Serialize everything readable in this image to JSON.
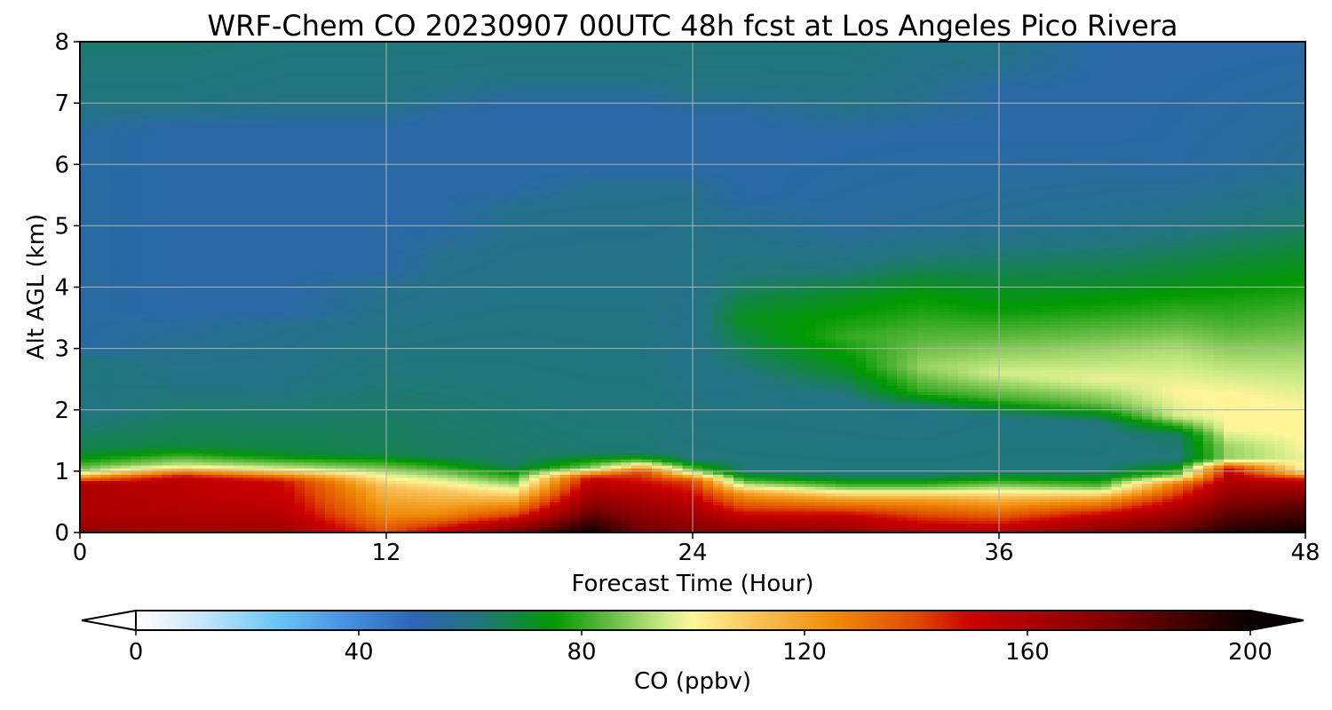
{
  "chart_data": {
    "type": "heatmap",
    "title": "WRF-Chem CO  20230907 00UTC 48h fcst at Los Angeles Pico Rivera",
    "xlabel": "Forecast Time (Hour)",
    "ylabel": "Alt AGL (km)",
    "xlim": [
      0,
      48
    ],
    "ylim": [
      0,
      8
    ],
    "x_ticks": [
      "0",
      "12",
      "24",
      "36",
      "48"
    ],
    "y_ticks": [
      "0",
      "1",
      "2",
      "3",
      "4",
      "5",
      "6",
      "7",
      "8"
    ],
    "grid": true,
    "colorbar": {
      "label": "CO  (ppbv)",
      "range": [
        0,
        200
      ],
      "ticks": [
        "0",
        "40",
        "80",
        "120",
        "160",
        "200"
      ],
      "extend": "both",
      "orientation": "horizontal",
      "stops": [
        {
          "v": 0,
          "c": "#ffffff"
        },
        {
          "v": 12,
          "c": "#c6e6fa"
        },
        {
          "v": 25,
          "c": "#6cc6f6"
        },
        {
          "v": 38,
          "c": "#4690e0"
        },
        {
          "v": 50,
          "c": "#2d64b4"
        },
        {
          "v": 62,
          "c": "#20767a"
        },
        {
          "v": 75,
          "c": "#009900"
        },
        {
          "v": 85,
          "c": "#66bb44"
        },
        {
          "v": 95,
          "c": "#cceb88"
        },
        {
          "v": 100,
          "c": "#fff699"
        },
        {
          "v": 110,
          "c": "#f9c860"
        },
        {
          "v": 125,
          "c": "#f08c08"
        },
        {
          "v": 140,
          "c": "#e14a00"
        },
        {
          "v": 150,
          "c": "#cc0000"
        },
        {
          "v": 175,
          "c": "#800000"
        },
        {
          "v": 200,
          "c": "#0a0000"
        }
      ]
    },
    "columns": [
      {
        "t": 0,
        "levels": [
          [
            0,
            170
          ],
          [
            0.3,
            160
          ],
          [
            0.8,
            160
          ],
          [
            1.0,
            90
          ],
          [
            1.3,
            68
          ],
          [
            2.0,
            60
          ],
          [
            2.8,
            62
          ],
          [
            3.0,
            54
          ],
          [
            6.5,
            54
          ],
          [
            7.0,
            61
          ],
          [
            8.0,
            63
          ]
        ]
      },
      {
        "t": 4,
        "levels": [
          [
            0,
            165
          ],
          [
            0.4,
            158
          ],
          [
            0.9,
            155
          ],
          [
            1.1,
            95
          ],
          [
            1.4,
            68
          ],
          [
            2.5,
            60
          ],
          [
            3.2,
            57
          ],
          [
            3.6,
            53
          ],
          [
            6.6,
            53
          ],
          [
            7.0,
            61
          ],
          [
            8.0,
            63
          ]
        ]
      },
      {
        "t": 8,
        "levels": [
          [
            0,
            165
          ],
          [
            0.4,
            155
          ],
          [
            0.85,
            148
          ],
          [
            1.05,
            95
          ],
          [
            1.3,
            68
          ],
          [
            2.5,
            60
          ],
          [
            3.4,
            58
          ],
          [
            3.6,
            53
          ],
          [
            6.6,
            53
          ],
          [
            7.0,
            60
          ],
          [
            8.0,
            62
          ]
        ]
      },
      {
        "t": 12,
        "levels": [
          [
            0,
            140
          ],
          [
            0.3,
            125
          ],
          [
            0.75,
            112
          ],
          [
            1.0,
            92
          ],
          [
            1.3,
            66
          ],
          [
            4.0,
            58
          ],
          [
            4.3,
            53
          ],
          [
            6.6,
            53
          ],
          [
            7.0,
            60
          ],
          [
            8.0,
            62
          ]
        ]
      },
      {
        "t": 14,
        "levels": [
          [
            0,
            155
          ],
          [
            0.3,
            125
          ],
          [
            0.7,
            110
          ],
          [
            0.95,
            90
          ],
          [
            1.25,
            65
          ],
          [
            4.5,
            58
          ],
          [
            5.0,
            53
          ],
          [
            6.8,
            53
          ],
          [
            7.2,
            60
          ],
          [
            8.0,
            62
          ]
        ]
      },
      {
        "t": 17,
        "levels": [
          [
            0,
            180
          ],
          [
            0.3,
            140
          ],
          [
            0.6,
            110
          ],
          [
            0.8,
            90
          ],
          [
            1.1,
            64
          ],
          [
            5.3,
            58
          ],
          [
            5.6,
            53
          ],
          [
            7.0,
            53
          ],
          [
            7.4,
            60
          ],
          [
            8.0,
            62
          ]
        ]
      },
      {
        "t": 20,
        "levels": [
          [
            0,
            200
          ],
          [
            0.5,
            170
          ],
          [
            0.9,
            150
          ],
          [
            1.05,
            90
          ],
          [
            1.3,
            63
          ],
          [
            5.6,
            58
          ],
          [
            5.9,
            53
          ],
          [
            7.0,
            53
          ],
          [
            7.4,
            60
          ],
          [
            8.0,
            62
          ]
        ]
      },
      {
        "t": 22,
        "levels": [
          [
            0,
            180
          ],
          [
            0.6,
            160
          ],
          [
            1.0,
            140
          ],
          [
            1.15,
            90
          ],
          [
            1.3,
            63
          ],
          [
            5.6,
            58
          ],
          [
            5.9,
            53
          ],
          [
            7.0,
            53
          ],
          [
            7.4,
            60
          ],
          [
            8.0,
            62
          ]
        ]
      },
      {
        "t": 24,
        "levels": [
          [
            0,
            175
          ],
          [
            0.4,
            160
          ],
          [
            0.85,
            140
          ],
          [
            1.0,
            90
          ],
          [
            1.2,
            62
          ],
          [
            3.5,
            58
          ],
          [
            4.5,
            60
          ],
          [
            5.6,
            58
          ],
          [
            5.9,
            53
          ],
          [
            6.8,
            53
          ],
          [
            7.2,
            60
          ],
          [
            8.0,
            62
          ]
        ]
      },
      {
        "t": 26,
        "levels": [
          [
            0,
            175
          ],
          [
            0.3,
            150
          ],
          [
            0.65,
            120
          ],
          [
            0.8,
            90
          ],
          [
            1.0,
            62
          ],
          [
            2.5,
            60
          ],
          [
            3.5,
            72
          ],
          [
            4.2,
            62
          ],
          [
            5.0,
            58
          ],
          [
            5.5,
            53
          ],
          [
            6.8,
            53
          ],
          [
            7.2,
            60
          ],
          [
            8.0,
            62
          ]
        ]
      },
      {
        "t": 30,
        "levels": [
          [
            0,
            170
          ],
          [
            0.3,
            150
          ],
          [
            0.55,
            120
          ],
          [
            0.75,
            85
          ],
          [
            0.95,
            62
          ],
          [
            2.2,
            60
          ],
          [
            2.7,
            72
          ],
          [
            3.2,
            80
          ],
          [
            3.8,
            72
          ],
          [
            4.3,
            62
          ],
          [
            5.0,
            55
          ],
          [
            6.5,
            53
          ],
          [
            7.0,
            60
          ],
          [
            8.0,
            62
          ]
        ]
      },
      {
        "t": 33,
        "levels": [
          [
            0,
            160
          ],
          [
            0.3,
            140
          ],
          [
            0.55,
            120
          ],
          [
            0.75,
            85
          ],
          [
            0.95,
            62
          ],
          [
            2.0,
            60
          ],
          [
            2.3,
            80
          ],
          [
            2.7,
            90
          ],
          [
            3.3,
            82
          ],
          [
            3.9,
            74
          ],
          [
            4.4,
            64
          ],
          [
            5.0,
            56
          ],
          [
            6.6,
            53
          ],
          [
            7.0,
            58
          ],
          [
            8.0,
            60
          ]
        ]
      },
      {
        "t": 36,
        "levels": [
          [
            0,
            160
          ],
          [
            0.3,
            135
          ],
          [
            0.55,
            115
          ],
          [
            0.8,
            85
          ],
          [
            1.0,
            62
          ],
          [
            1.9,
            61
          ],
          [
            2.2,
            82
          ],
          [
            2.6,
            96
          ],
          [
            3.0,
            88
          ],
          [
            3.6,
            76
          ],
          [
            4.3,
            66
          ],
          [
            5.0,
            57
          ],
          [
            6.5,
            53
          ],
          [
            7.2,
            53
          ],
          [
            7.6,
            58
          ],
          [
            8.0,
            60
          ]
        ]
      },
      {
        "t": 40,
        "levels": [
          [
            0,
            175
          ],
          [
            0.3,
            150
          ],
          [
            0.55,
            120
          ],
          [
            0.75,
            85
          ],
          [
            1.0,
            62
          ],
          [
            1.8,
            61
          ],
          [
            2.1,
            85
          ],
          [
            2.5,
            98
          ],
          [
            3.0,
            90
          ],
          [
            3.6,
            78
          ],
          [
            4.2,
            68
          ],
          [
            5.0,
            58
          ],
          [
            6.5,
            53
          ],
          [
            8.0,
            53
          ]
        ]
      },
      {
        "t": 43,
        "levels": [
          [
            0,
            185
          ],
          [
            0.4,
            160
          ],
          [
            0.8,
            130
          ],
          [
            0.95,
            85
          ],
          [
            1.2,
            62
          ],
          [
            1.6,
            64
          ],
          [
            1.9,
            96
          ],
          [
            2.3,
            100
          ],
          [
            3.0,
            92
          ],
          [
            3.6,
            80
          ],
          [
            4.2,
            70
          ],
          [
            5.0,
            60
          ],
          [
            6.0,
            54
          ],
          [
            8.0,
            53
          ]
        ]
      },
      {
        "t": 45,
        "levels": [
          [
            0,
            195
          ],
          [
            0.6,
            170
          ],
          [
            1.05,
            150
          ],
          [
            1.2,
            90
          ],
          [
            1.4,
            90
          ],
          [
            1.7,
            100
          ],
          [
            2.2,
            101
          ],
          [
            2.8,
            92
          ],
          [
            3.4,
            82
          ],
          [
            4.2,
            72
          ],
          [
            5.0,
            62
          ],
          [
            6.0,
            55
          ],
          [
            8.0,
            53
          ]
        ]
      },
      {
        "t": 48,
        "levels": [
          [
            0,
            200
          ],
          [
            0.5,
            180
          ],
          [
            0.85,
            155
          ],
          [
            1.0,
            100
          ],
          [
            1.2,
            98
          ],
          [
            1.6,
            101
          ],
          [
            2.0,
            100
          ],
          [
            2.8,
            92
          ],
          [
            3.4,
            84
          ],
          [
            4.2,
            74
          ],
          [
            5.0,
            64
          ],
          [
            6.0,
            57
          ],
          [
            8.0,
            53
          ]
        ]
      }
    ]
  }
}
